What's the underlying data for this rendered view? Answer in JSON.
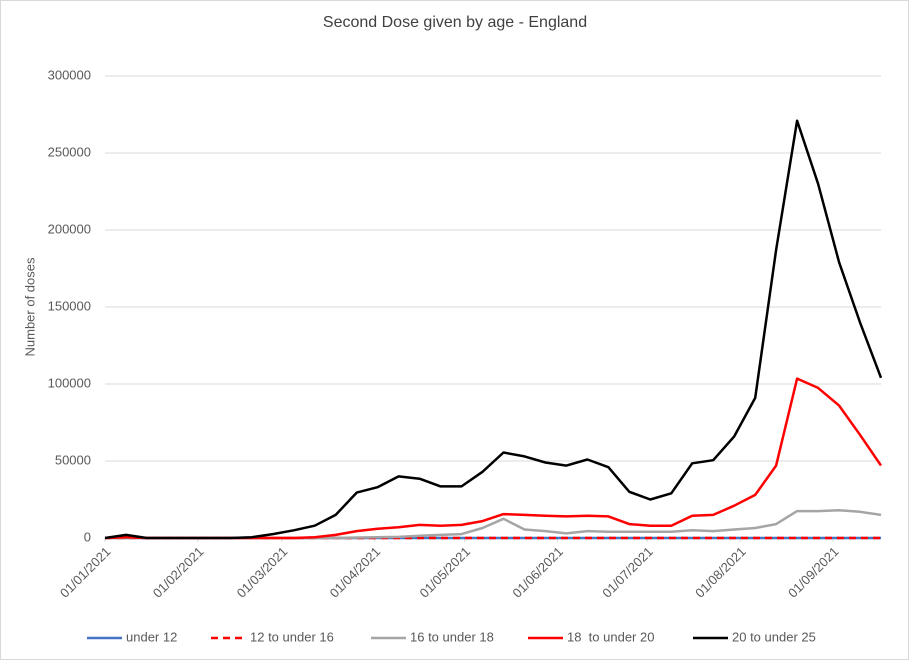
{
  "chart_data": {
    "type": "line",
    "title": "Second Dose given by age - England",
    "y_label": "Number of doses",
    "x": [
      "2021-01-01",
      "2021-01-08",
      "2021-01-15",
      "2021-01-22",
      "2021-01-29",
      "2021-02-05",
      "2021-02-12",
      "2021-02-19",
      "2021-02-26",
      "2021-03-05",
      "2021-03-12",
      "2021-03-19",
      "2021-03-26",
      "2021-04-02",
      "2021-04-09",
      "2021-04-16",
      "2021-04-23",
      "2021-04-30",
      "2021-05-07",
      "2021-05-14",
      "2021-05-21",
      "2021-05-28",
      "2021-06-04",
      "2021-06-11",
      "2021-06-18",
      "2021-06-25",
      "2021-07-02",
      "2021-07-09",
      "2021-07-16",
      "2021-07-23",
      "2021-07-30",
      "2021-08-06",
      "2021-08-13",
      "2021-08-20",
      "2021-08-27",
      "2021-09-03",
      "2021-09-10",
      "2021-09-17"
    ],
    "xlim": [
      "2021-01-01",
      "2021-09-17"
    ],
    "xticks": [
      {
        "value": "2021-01-01",
        "label": "01/01/2021"
      },
      {
        "value": "2021-02-01",
        "label": "01/02/2021"
      },
      {
        "value": "2021-03-01",
        "label": "01/03/2021"
      },
      {
        "value": "2021-04-01",
        "label": "01/04/2021"
      },
      {
        "value": "2021-05-01",
        "label": "01/05/2021"
      },
      {
        "value": "2021-06-01",
        "label": "01/06/2021"
      },
      {
        "value": "2021-07-01",
        "label": "01/07/2021"
      },
      {
        "value": "2021-08-01",
        "label": "01/08/2021"
      },
      {
        "value": "2021-09-01",
        "label": "01/09/2021"
      }
    ],
    "ylim": [
      0,
      300000
    ],
    "yticks": [
      0,
      50000,
      100000,
      150000,
      200000,
      250000,
      300000
    ],
    "grid": true,
    "legend": "bottom",
    "series": [
      {
        "name": "under 12",
        "color": "#4472c4",
        "dash": false,
        "values": [
          0,
          0,
          0,
          0,
          0,
          0,
          0,
          0,
          0,
          0,
          0,
          0,
          0,
          0,
          0,
          0,
          0,
          0,
          0,
          0,
          0,
          0,
          0,
          0,
          0,
          0,
          0,
          0,
          0,
          0,
          0,
          0,
          0,
          0,
          0,
          0,
          0,
          0
        ]
      },
      {
        "name": "12 to under 16",
        "color": "#ff0000",
        "dash": true,
        "values": [
          0,
          0,
          0,
          0,
          0,
          0,
          0,
          0,
          0,
          0,
          0,
          0,
          0,
          0,
          0,
          0,
          0,
          0,
          0,
          0,
          0,
          0,
          0,
          0,
          0,
          0,
          0,
          0,
          0,
          0,
          0,
          0,
          0,
          0,
          0,
          0,
          0,
          0
        ]
      },
      {
        "name": "16 to under 18",
        "color": "#a5a5a5",
        "dash": false,
        "values": [
          0,
          0,
          0,
          0,
          0,
          0,
          0,
          0,
          0,
          0,
          0,
          0,
          300,
          500,
          700,
          1500,
          2000,
          2500,
          6500,
          12500,
          5500,
          4500,
          3000,
          4500,
          4000,
          4000,
          4000,
          4000,
          5000,
          4500,
          5500,
          6500,
          9000,
          17500,
          17500,
          18000,
          17000,
          15000
        ]
      },
      {
        "name": "18  to under 20",
        "color": "#ff0000",
        "dash": false,
        "values": [
          0,
          500,
          0,
          0,
          0,
          0,
          0,
          0,
          0,
          0,
          500,
          2000,
          4500,
          6000,
          7000,
          8500,
          8000,
          8500,
          11000,
          15500,
          15000,
          14500,
          14000,
          14500,
          14000,
          9000,
          8000,
          8000,
          14500,
          15000,
          21000,
          28000,
          47000,
          103500,
          97500,
          86000,
          67000,
          47000
        ]
      },
      {
        "name": "20 to under 25",
        "color": "#000000",
        "dash": false,
        "values": [
          0,
          2000,
          0,
          0,
          0,
          0,
          0,
          500,
          2500,
          5000,
          8000,
          15000,
          29500,
          33000,
          40000,
          38500,
          33500,
          33500,
          43000,
          55500,
          53000,
          49000,
          47000,
          51000,
          46000,
          30000,
          25000,
          29000,
          48500,
          50500,
          66000,
          91000,
          187000,
          271000,
          230000,
          179000,
          140000,
          104000
        ]
      }
    ]
  }
}
